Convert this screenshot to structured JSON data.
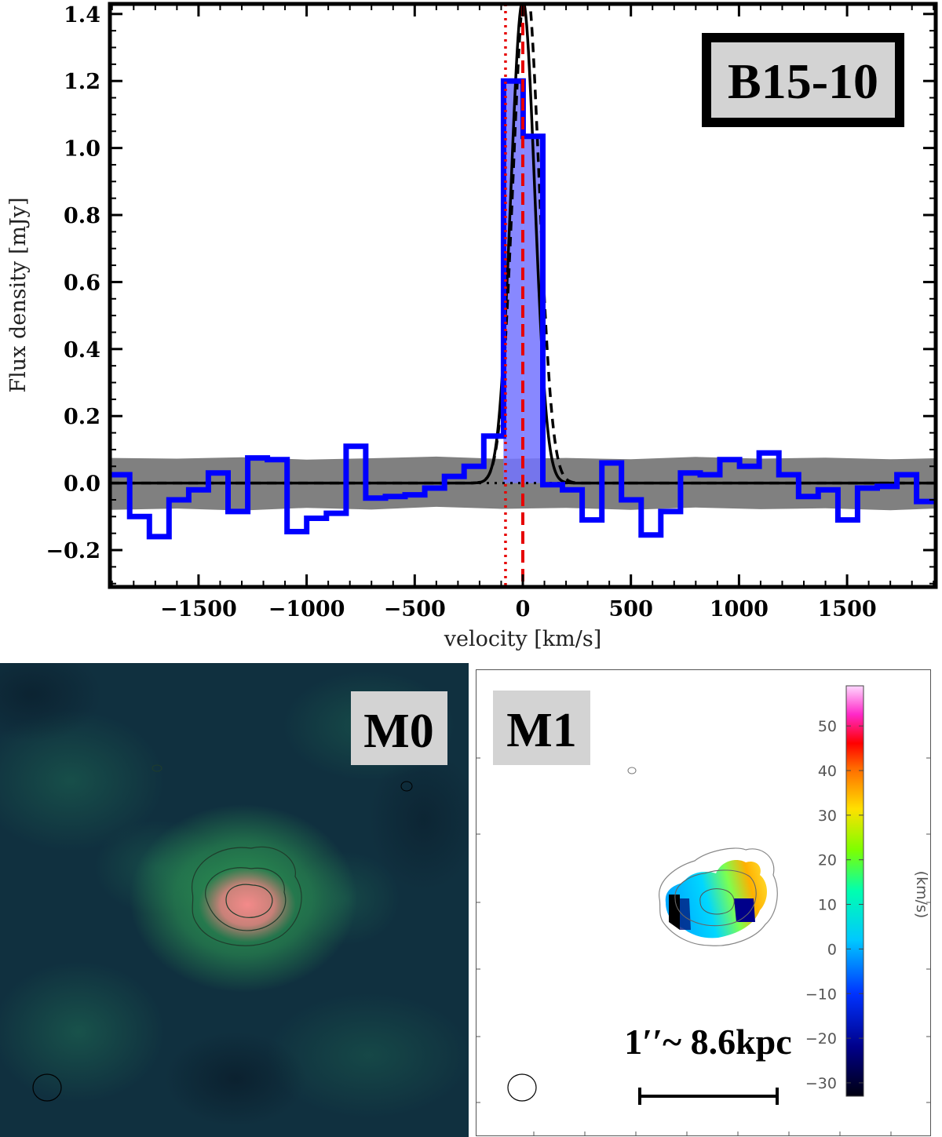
{
  "chart_data": [
    {
      "type": "line",
      "panel": "spectrum",
      "title": "B15-10",
      "xlabel": "velocity [km/s]",
      "ylabel": "Flux density [mJy]",
      "xlim": [
        -1910,
        1910
      ],
      "ylim": [
        -0.31,
        1.43
      ],
      "xticks": [
        -1500,
        -1000,
        -500,
        0,
        500,
        1000,
        1500
      ],
      "xtick_labels": [
        "−1500",
        "−1000",
        "−500",
        "0",
        "500",
        "1000",
        "1500"
      ],
      "yticks": [
        -0.2,
        0.0,
        0.2,
        0.4,
        0.6,
        0.8,
        1.0,
        1.2,
        1.4
      ],
      "ytick_labels": [
        "−0.2",
        "0.0",
        "0.2",
        "0.4",
        "0.6",
        "0.8",
        "1.0",
        "1.2",
        "1.4"
      ],
      "series": [
        {
          "style": "step",
          "color": "#0000ff",
          "bin_width": 91,
          "x": [
            -1864,
            -1773,
            -1682,
            -1591,
            -1500,
            -1409,
            -1318,
            -1227,
            -1136,
            -1045,
            -954,
            -863,
            -772,
            -681,
            -590,
            -499,
            -408,
            -317,
            -226,
            -135,
            -44,
            47,
            138,
            229,
            320,
            411,
            502,
            593,
            684,
            775,
            866,
            957,
            1048,
            1139,
            1230,
            1321,
            1412,
            1503,
            1594,
            1685,
            1776,
            1867
          ],
          "values": [
            0.025,
            -0.1,
            -0.16,
            -0.05,
            -0.02,
            0.03,
            -0.085,
            0.075,
            0.07,
            -0.145,
            -0.105,
            -0.09,
            0.11,
            -0.045,
            -0.04,
            -0.035,
            -0.015,
            0.02,
            0.05,
            0.14,
            1.2,
            1.035,
            -0.005,
            -0.02,
            -0.11,
            0.06,
            -0.05,
            -0.155,
            -0.085,
            0.03,
            0.025,
            0.07,
            0.05,
            0.09,
            0.025,
            -0.04,
            -0.02,
            -0.11,
            -0.015,
            -0.01,
            0.025,
            -0.055
          ]
        },
        {
          "style": "gaussian-fit-solid",
          "color": "#000000",
          "amplitude": 1.44,
          "center": 0,
          "sigma": 55
        },
        {
          "style": "gaussian-fit-dashed",
          "color": "#000000",
          "amplitude": 1.5,
          "center": 15,
          "sigma": 60
        }
      ],
      "noise_band": {
        "color": "#808080",
        "x": [
          -1910,
          -1600,
          -1300,
          -1000,
          -700,
          -400,
          -100,
          200,
          500,
          800,
          1100,
          1400,
          1700,
          1910
        ],
        "upper": [
          0.075,
          0.073,
          0.077,
          0.07,
          0.074,
          0.079,
          0.072,
          0.075,
          0.071,
          0.078,
          0.073,
          0.076,
          0.071,
          0.074
        ],
        "lower": [
          -0.08,
          -0.076,
          -0.082,
          -0.074,
          -0.079,
          -0.071,
          -0.077,
          -0.074,
          -0.08,
          -0.073,
          -0.078,
          -0.075,
          -0.081,
          -0.076
        ]
      },
      "reference_lines": [
        {
          "orientation": "vertical",
          "x": 0,
          "style": "dashed",
          "color": "#e60000"
        },
        {
          "orientation": "vertical",
          "x": -80,
          "style": "dotted",
          "color": "#e60000"
        },
        {
          "orientation": "horizontal",
          "y": 0,
          "style": "dotted",
          "color": "#000000"
        }
      ],
      "highlight_fill": {
        "color": "#7373ff",
        "x_range": [
          -89,
          93
        ]
      },
      "legend": "none",
      "grid": false
    },
    {
      "type": "heatmap",
      "panel": "moment-0 map",
      "title": "M0",
      "colormap": [
        "#0d2a3c",
        "#176457",
        "#2f9e54",
        "#f07a7a"
      ]
    },
    {
      "type": "heatmap",
      "panel": "moment-1 map",
      "title": "M1",
      "scale_bar_label": "1′′~ 8.6kpc",
      "colorbar": {
        "label": "(km/s)",
        "range": [
          -33,
          59
        ],
        "ticks": [
          50,
          40,
          30,
          20,
          10,
          0,
          -10,
          -20,
          -30
        ],
        "tick_labels": [
          "50",
          "40",
          "30",
          "20",
          "10",
          "0",
          "−10",
          "−20",
          "−30"
        ]
      }
    }
  ]
}
